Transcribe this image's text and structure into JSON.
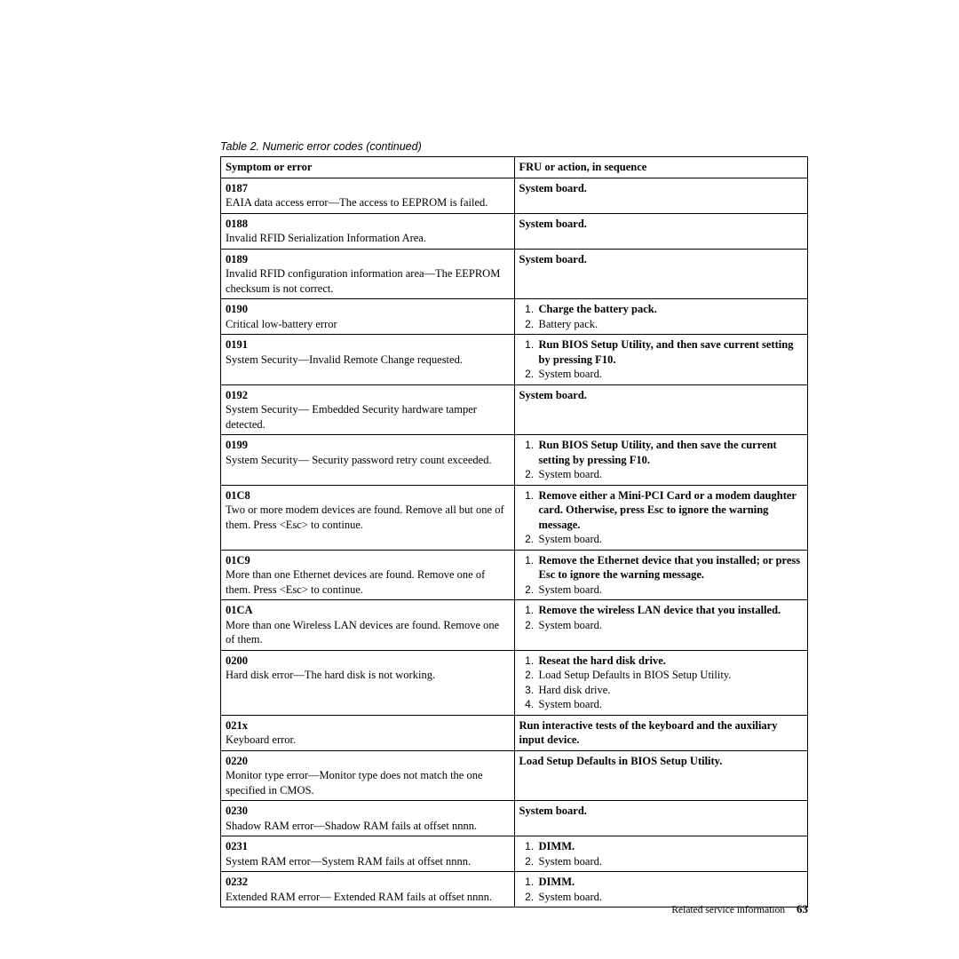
{
  "caption": "Table 2. Numeric error codes  (continued)",
  "headers": {
    "symptom": "Symptom or error",
    "action": "FRU or action, in sequence"
  },
  "rows": [
    {
      "code": "0187",
      "desc": "EAIA data access error—The access to EEPROM is failed.",
      "action_plain_bold": "System board."
    },
    {
      "code": "0188",
      "desc": "Invalid RFID Serialization Information Area.",
      "action_plain_bold": "System board."
    },
    {
      "code": "0189",
      "desc": "Invalid RFID configuration information area—The EEPROM checksum is not correct.",
      "action_plain_bold": "System board."
    },
    {
      "code": "0190",
      "desc": "Critical low-battery error",
      "action_list": [
        {
          "text": "Charge the battery pack.",
          "bold": true
        },
        {
          "text": "Battery pack.",
          "bold": false
        }
      ]
    },
    {
      "code": "0191",
      "desc": "System Security—Invalid Remote Change requested.",
      "action_list": [
        {
          "text": "Run BIOS Setup Utility, and then save current setting by pressing F10.",
          "bold": true
        },
        {
          "text": "System board.",
          "bold": false
        }
      ]
    },
    {
      "code": "0192",
      "desc": "System Security— Embedded Security hardware tamper detected.",
      "action_plain_bold": "System board."
    },
    {
      "code": "0199",
      "desc": "System Security— Security password retry count exceeded.",
      "action_list": [
        {
          "text": "Run BIOS Setup Utility, and then save the current setting by pressing F10.",
          "bold": true
        },
        {
          "text": "System board.",
          "bold": false
        }
      ]
    },
    {
      "code": "01C8",
      "desc": "Two or more modem devices are found. Remove all but one of them. Press <Esc> to continue.",
      "action_list": [
        {
          "text": "Remove either a Mini-PCI Card or a modem daughter card. Otherwise, press Esc to ignore the warning message.",
          "bold": true
        },
        {
          "text": "System board.",
          "bold": false
        }
      ]
    },
    {
      "code": "01C9",
      "desc": "More than one Ethernet devices are found. Remove one of them. Press <Esc> to continue.",
      "action_list": [
        {
          "text": "Remove the Ethernet device that you installed; or press Esc to ignore the warning message.",
          "bold": true
        },
        {
          "text": "System board.",
          "bold": false
        }
      ]
    },
    {
      "code": "01CA",
      "desc": "More than one Wireless LAN devices are found. Remove one of them.",
      "action_list": [
        {
          "text": "Remove the wireless LAN device that you installed.",
          "bold": true
        },
        {
          "text": "System board.",
          "bold": false
        }
      ]
    },
    {
      "code": "0200",
      "desc": "Hard disk error—The hard disk is not working.",
      "action_list": [
        {
          "text": "Reseat the hard disk drive.",
          "bold": true
        },
        {
          "text": "Load Setup Defaults in BIOS Setup Utility.",
          "bold": false
        },
        {
          "text": "Hard disk drive.",
          "bold": false
        },
        {
          "text": "System board.",
          "bold": false
        }
      ]
    },
    {
      "code": "021x",
      "desc": "Keyboard error.",
      "action_plain_bold": "Run interactive tests of the keyboard and the auxiliary input device."
    },
    {
      "code": "0220",
      "desc": "Monitor type error—Monitor type does not match the one specified in CMOS.",
      "action_plain_bold": "Load Setup Defaults in BIOS Setup Utility."
    },
    {
      "code": "0230",
      "desc": "Shadow RAM error—Shadow RAM fails at offset nnnn.",
      "action_plain_bold": "System board."
    },
    {
      "code": "0231",
      "desc": "System RAM error—System RAM fails at offset nnnn.",
      "action_list": [
        {
          "text": "DIMM.",
          "bold": true
        },
        {
          "text": "System board.",
          "bold": false
        }
      ]
    },
    {
      "code": "0232",
      "desc": "Extended RAM error— Extended RAM fails at offset nnnn.",
      "action_list": [
        {
          "text": "DIMM.",
          "bold": true
        },
        {
          "text": "System board.",
          "bold": false
        }
      ]
    }
  ],
  "footer": {
    "label": "Related service information",
    "page": "63"
  }
}
